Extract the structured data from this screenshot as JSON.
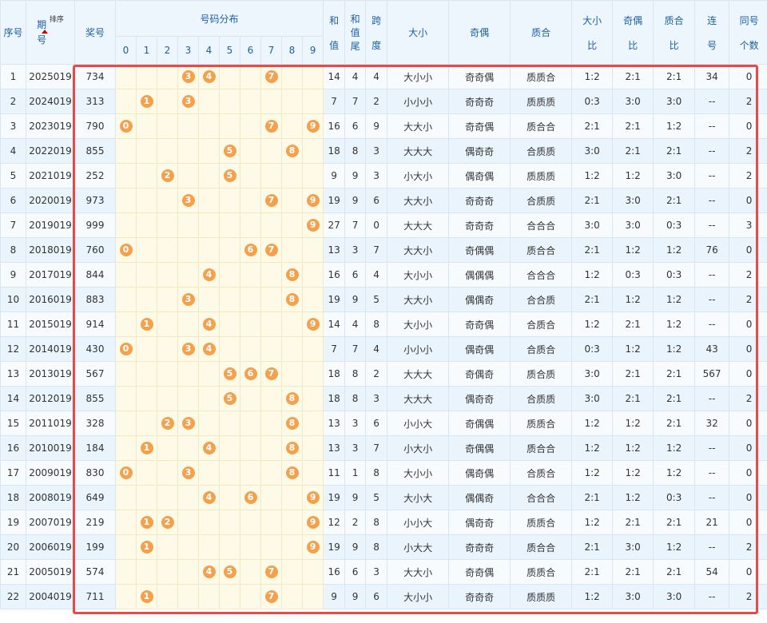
{
  "header": {
    "seq": "序号",
    "period_top": "期",
    "period_bottom": "号",
    "sort_label": "排序",
    "prize": "奖号",
    "distribution": "号码分布",
    "digits": [
      "0",
      "1",
      "2",
      "3",
      "4",
      "5",
      "6",
      "7",
      "8",
      "9"
    ],
    "sum_top": "和",
    "sum_bottom": "值",
    "sumtail_top": "和",
    "sumtail_mid": "值",
    "sumtail_bottom": "尾",
    "span_top": "跨",
    "span_bottom": "度",
    "size": "大小",
    "parity": "奇偶",
    "prime": "质合",
    "size_ratio_top": "大小",
    "size_ratio_bottom": "比",
    "parity_ratio_top": "奇偶",
    "parity_ratio_bottom": "比",
    "prime_ratio_top": "质合",
    "prime_ratio_bottom": "比",
    "consec_top": "连",
    "consec_bottom": "号",
    "same_top": "同号",
    "same_bottom": "个数"
  },
  "rows": [
    {
      "seq": "1",
      "period": "2025019",
      "prize": "734",
      "sum": "14",
      "tail": "4",
      "span": "4",
      "size": "大小小",
      "parity": "奇奇偶",
      "prime": "质质合",
      "sr": "1:2",
      "pr": "2:1",
      "qr": "2:1",
      "consec": "34",
      "same": "0"
    },
    {
      "seq": "2",
      "period": "2024019",
      "prize": "313",
      "sum": "7",
      "tail": "7",
      "span": "2",
      "size": "小小小",
      "parity": "奇奇奇",
      "prime": "质质质",
      "sr": "0:3",
      "pr": "3:0",
      "qr": "3:0",
      "consec": "--",
      "same": "2"
    },
    {
      "seq": "3",
      "period": "2023019",
      "prize": "790",
      "sum": "16",
      "tail": "6",
      "span": "9",
      "size": "大大小",
      "parity": "奇奇偶",
      "prime": "质合合",
      "sr": "2:1",
      "pr": "2:1",
      "qr": "1:2",
      "consec": "--",
      "same": "0"
    },
    {
      "seq": "4",
      "period": "2022019",
      "prize": "855",
      "sum": "18",
      "tail": "8",
      "span": "3",
      "size": "大大大",
      "parity": "偶奇奇",
      "prime": "合质质",
      "sr": "3:0",
      "pr": "2:1",
      "qr": "2:1",
      "consec": "--",
      "same": "2"
    },
    {
      "seq": "5",
      "period": "2021019",
      "prize": "252",
      "sum": "9",
      "tail": "9",
      "span": "3",
      "size": "小大小",
      "parity": "偶奇偶",
      "prime": "质质质",
      "sr": "1:2",
      "pr": "1:2",
      "qr": "3:0",
      "consec": "--",
      "same": "2"
    },
    {
      "seq": "6",
      "period": "2020019",
      "prize": "973",
      "sum": "19",
      "tail": "9",
      "span": "6",
      "size": "大大小",
      "parity": "奇奇奇",
      "prime": "合质质",
      "sr": "2:1",
      "pr": "3:0",
      "qr": "2:1",
      "consec": "--",
      "same": "0"
    },
    {
      "seq": "7",
      "period": "2019019",
      "prize": "999",
      "sum": "27",
      "tail": "7",
      "span": "0",
      "size": "大大大",
      "parity": "奇奇奇",
      "prime": "合合合",
      "sr": "3:0",
      "pr": "3:0",
      "qr": "0:3",
      "consec": "--",
      "same": "3"
    },
    {
      "seq": "8",
      "period": "2018019",
      "prize": "760",
      "sum": "13",
      "tail": "3",
      "span": "7",
      "size": "大大小",
      "parity": "奇偶偶",
      "prime": "质合合",
      "sr": "2:1",
      "pr": "1:2",
      "qr": "1:2",
      "consec": "76",
      "same": "0"
    },
    {
      "seq": "9",
      "period": "2017019",
      "prize": "844",
      "sum": "16",
      "tail": "6",
      "span": "4",
      "size": "大小小",
      "parity": "偶偶偶",
      "prime": "合合合",
      "sr": "1:2",
      "pr": "0:3",
      "qr": "0:3",
      "consec": "--",
      "same": "2"
    },
    {
      "seq": "10",
      "period": "2016019",
      "prize": "883",
      "sum": "19",
      "tail": "9",
      "span": "5",
      "size": "大大小",
      "parity": "偶偶奇",
      "prime": "合合质",
      "sr": "2:1",
      "pr": "1:2",
      "qr": "1:2",
      "consec": "--",
      "same": "2"
    },
    {
      "seq": "11",
      "period": "2015019",
      "prize": "914",
      "sum": "14",
      "tail": "4",
      "span": "8",
      "size": "大小小",
      "parity": "奇奇偶",
      "prime": "合质合",
      "sr": "1:2",
      "pr": "2:1",
      "qr": "1:2",
      "consec": "--",
      "same": "0"
    },
    {
      "seq": "12",
      "period": "2014019",
      "prize": "430",
      "sum": "7",
      "tail": "7",
      "span": "4",
      "size": "小小小",
      "parity": "偶奇偶",
      "prime": "合质合",
      "sr": "0:3",
      "pr": "1:2",
      "qr": "1:2",
      "consec": "43",
      "same": "0"
    },
    {
      "seq": "13",
      "period": "2013019",
      "prize": "567",
      "sum": "18",
      "tail": "8",
      "span": "2",
      "size": "大大大",
      "parity": "奇偶奇",
      "prime": "质合质",
      "sr": "3:0",
      "pr": "2:1",
      "qr": "2:1",
      "consec": "567",
      "same": "0"
    },
    {
      "seq": "14",
      "period": "2012019",
      "prize": "855",
      "sum": "18",
      "tail": "8",
      "span": "3",
      "size": "大大大",
      "parity": "偶奇奇",
      "prime": "合质质",
      "sr": "3:0",
      "pr": "2:1",
      "qr": "2:1",
      "consec": "--",
      "same": "2"
    },
    {
      "seq": "15",
      "period": "2011019",
      "prize": "328",
      "sum": "13",
      "tail": "3",
      "span": "6",
      "size": "小小大",
      "parity": "奇偶偶",
      "prime": "质质合",
      "sr": "1:2",
      "pr": "1:2",
      "qr": "2:1",
      "consec": "32",
      "same": "0"
    },
    {
      "seq": "16",
      "period": "2010019",
      "prize": "184",
      "sum": "13",
      "tail": "3",
      "span": "7",
      "size": "小大小",
      "parity": "奇偶偶",
      "prime": "质合合",
      "sr": "1:2",
      "pr": "1:2",
      "qr": "1:2",
      "consec": "--",
      "same": "0"
    },
    {
      "seq": "17",
      "period": "2009019",
      "prize": "830",
      "sum": "11",
      "tail": "1",
      "span": "8",
      "size": "大小小",
      "parity": "偶奇偶",
      "prime": "合质合",
      "sr": "1:2",
      "pr": "1:2",
      "qr": "1:2",
      "consec": "--",
      "same": "0"
    },
    {
      "seq": "18",
      "period": "2008019",
      "prize": "649",
      "sum": "19",
      "tail": "9",
      "span": "5",
      "size": "大小大",
      "parity": "偶偶奇",
      "prime": "合合合",
      "sr": "2:1",
      "pr": "1:2",
      "qr": "0:3",
      "consec": "--",
      "same": "0"
    },
    {
      "seq": "19",
      "period": "2007019",
      "prize": "219",
      "sum": "12",
      "tail": "2",
      "span": "8",
      "size": "小小大",
      "parity": "偶奇奇",
      "prime": "质质合",
      "sr": "1:2",
      "pr": "2:1",
      "qr": "2:1",
      "consec": "21",
      "same": "0"
    },
    {
      "seq": "20",
      "period": "2006019",
      "prize": "199",
      "sum": "19",
      "tail": "9",
      "span": "8",
      "size": "小大大",
      "parity": "奇奇奇",
      "prime": "质合合",
      "sr": "2:1",
      "pr": "3:0",
      "qr": "1:2",
      "consec": "--",
      "same": "2"
    },
    {
      "seq": "21",
      "period": "2005019",
      "prize": "574",
      "sum": "16",
      "tail": "6",
      "span": "3",
      "size": "大大小",
      "parity": "奇奇偶",
      "prime": "质质合",
      "sr": "2:1",
      "pr": "2:1",
      "qr": "2:1",
      "consec": "54",
      "same": "0"
    },
    {
      "seq": "22",
      "period": "2004019",
      "prize": "711",
      "sum": "9",
      "tail": "9",
      "span": "6",
      "size": "大小小",
      "parity": "奇奇奇",
      "prime": "质质质",
      "sr": "1:2",
      "pr": "3:0",
      "qr": "3:0",
      "consec": "--",
      "same": "2"
    }
  ],
  "colors": {
    "ball": "#f4a14e",
    "highlight": "#e84a4a",
    "header_text": "#1b5fa8"
  }
}
